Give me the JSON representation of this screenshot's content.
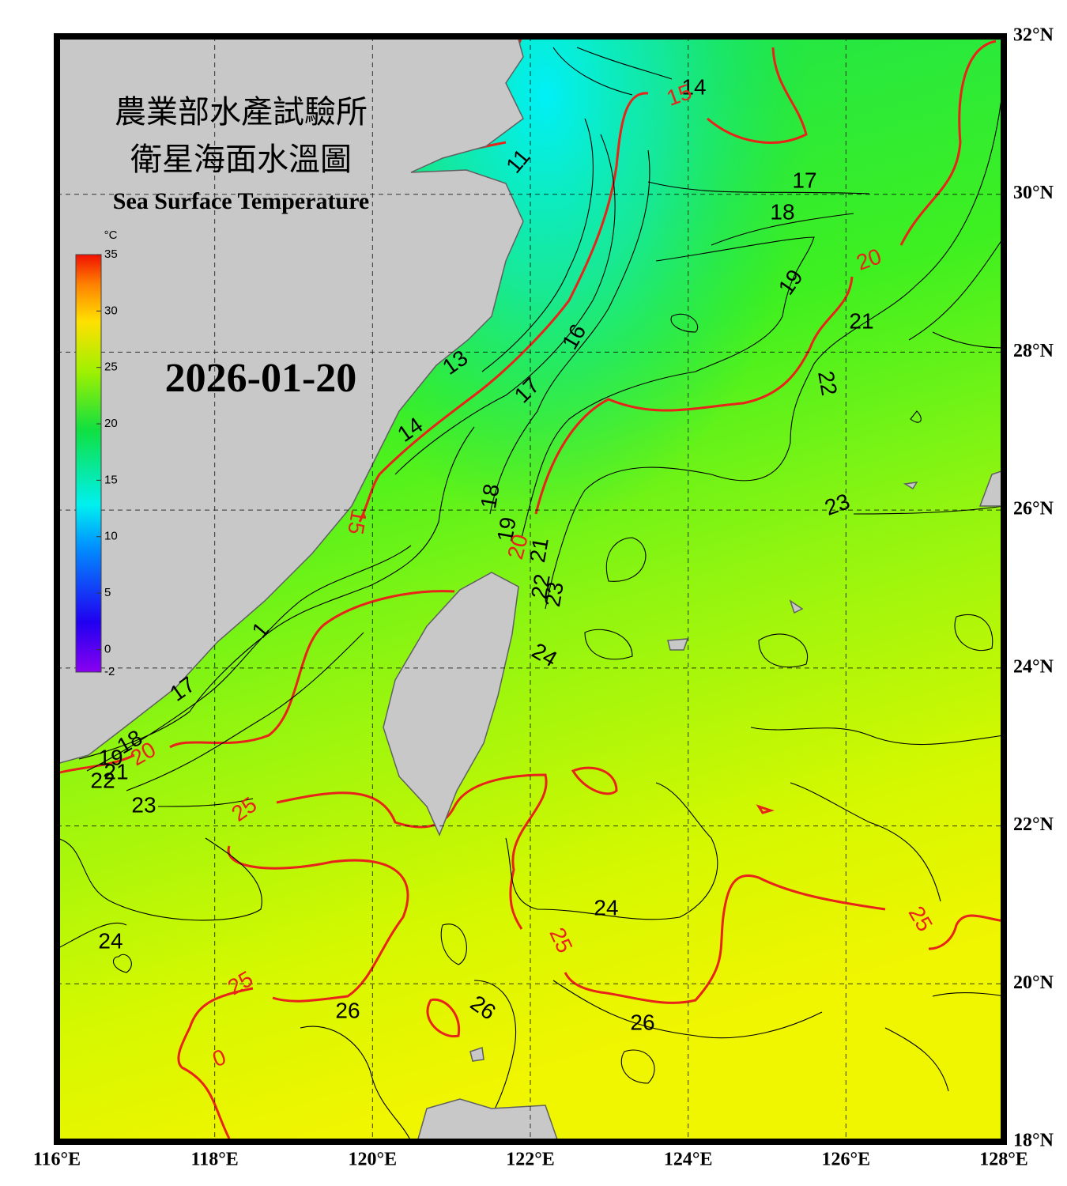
{
  "map": {
    "title_zh": [
      "農業部水產試驗所",
      "衛星海面水溫圖"
    ],
    "subtitle": "Sea Surface Temperature",
    "date": "2026-01-20",
    "lon_range": [
      116,
      128
    ],
    "lat_range": [
      18,
      32
    ],
    "lon_ticks": [
      {
        "value": 116,
        "label": "116°E"
      },
      {
        "value": 118,
        "label": "118°E"
      },
      {
        "value": 120,
        "label": "120°E"
      },
      {
        "value": 122,
        "label": "122°E"
      },
      {
        "value": 124,
        "label": "124°E"
      },
      {
        "value": 126,
        "label": "126°E"
      },
      {
        "value": 128,
        "label": "128°E"
      }
    ],
    "lat_ticks": [
      {
        "value": 18,
        "label": "18°N"
      },
      {
        "value": 20,
        "label": "20°N"
      },
      {
        "value": 22,
        "label": "22°N"
      },
      {
        "value": 24,
        "label": "24°N"
      },
      {
        "value": 26,
        "label": "26°N"
      },
      {
        "value": 28,
        "label": "28°N"
      },
      {
        "value": 30,
        "label": "30°N"
      },
      {
        "value": 32,
        "label": "32°N"
      }
    ],
    "colorbar": {
      "unit": "°C",
      "range": [
        -2,
        35
      ],
      "ticks": [
        35,
        30,
        25,
        20,
        15,
        10,
        5,
        0,
        -2
      ]
    },
    "contour_labels": [
      14,
      15,
      11,
      17,
      18,
      20,
      19,
      21,
      16,
      13,
      22,
      17,
      14,
      18,
      23,
      15,
      19,
      20,
      21,
      22,
      23,
      1,
      24,
      17,
      18,
      20,
      19,
      21,
      22,
      23,
      25,
      24,
      25,
      25,
      24,
      25,
      26,
      26,
      26,
      0
    ]
  }
}
